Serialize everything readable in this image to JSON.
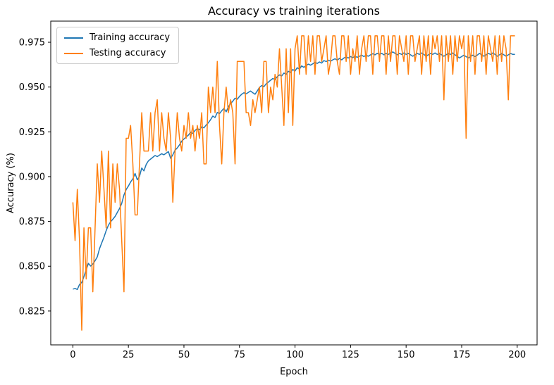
{
  "figure": {
    "background": "#ffffff"
  },
  "chart_data": {
    "type": "line",
    "title": "Accuracy vs training iterations",
    "xlabel": "Epoch",
    "ylabel": "Accuracy (%)",
    "grid": false,
    "legend_position": "upper left",
    "xlim": [
      -9.95,
      208.95
    ],
    "ylim": [
      0.8061,
      0.9868
    ],
    "xtick_labels": [
      "0",
      "25",
      "50",
      "75",
      "100",
      "125",
      "150",
      "175",
      "200"
    ],
    "ytick_labels": [
      "0.825",
      "0.850",
      "0.875",
      "0.900",
      "0.925",
      "0.950",
      "0.975"
    ],
    "x_values": "epoch index 0-199",
    "series": [
      {
        "name": "Training accuracy",
        "color": "#1f77b4",
        "values": [
          0.8372,
          0.8376,
          0.837,
          0.8398,
          0.841,
          0.8442,
          0.848,
          0.8516,
          0.8501,
          0.8512,
          0.8531,
          0.8552,
          0.8598,
          0.863,
          0.8662,
          0.8698,
          0.8729,
          0.8748,
          0.8762,
          0.8778,
          0.88,
          0.8822,
          0.8851,
          0.8898,
          0.8928,
          0.8948,
          0.897,
          0.8988,
          0.9018,
          0.8982,
          0.9001,
          0.9048,
          0.9032,
          0.9068,
          0.9088,
          0.9098,
          0.9108,
          0.9118,
          0.9112,
          0.912,
          0.9128,
          0.9122,
          0.9131,
          0.914,
          0.9102,
          0.9122,
          0.9148,
          0.916,
          0.9178,
          0.9198,
          0.921,
          0.9221,
          0.9232,
          0.9248,
          0.9241,
          0.9258,
          0.9268,
          0.9262,
          0.9278,
          0.9272,
          0.9288,
          0.9301,
          0.9318,
          0.9338,
          0.933,
          0.9358,
          0.9352,
          0.9368,
          0.938,
          0.9362,
          0.939,
          0.9408,
          0.9421,
          0.9438,
          0.9432,
          0.9448,
          0.946,
          0.9468,
          0.9462,
          0.947,
          0.9478,
          0.9468,
          0.946,
          0.9478,
          0.9498,
          0.9508,
          0.9502,
          0.9518,
          0.9528,
          0.9538,
          0.9548,
          0.9542,
          0.9558,
          0.9568,
          0.9562,
          0.9578,
          0.9572,
          0.9588,
          0.9582,
          0.9598,
          0.959,
          0.9608,
          0.96,
          0.9618,
          0.961,
          0.962,
          0.9628,
          0.9622,
          0.963,
          0.9638,
          0.9632,
          0.964,
          0.9634,
          0.9648,
          0.9642,
          0.965,
          0.9644,
          0.9652,
          0.9658,
          0.965,
          0.966,
          0.9652,
          0.9662,
          0.9668,
          0.9662,
          0.967,
          0.9664,
          0.9672,
          0.9666,
          0.9672,
          0.9678,
          0.967,
          0.9678,
          0.9672,
          0.968,
          0.9686,
          0.968,
          0.9688,
          0.9682,
          0.9688,
          0.968,
          0.9688,
          0.9682,
          0.969,
          0.9696,
          0.9688,
          0.968,
          0.9688,
          0.9682,
          0.969,
          0.9682,
          0.9688,
          0.968,
          0.9672,
          0.968,
          0.9688,
          0.9682,
          0.969,
          0.9682,
          0.9672,
          0.968,
          0.9688,
          0.9682,
          0.969,
          0.9682,
          0.9688,
          0.968,
          0.9672,
          0.968,
          0.9688,
          0.9682,
          0.969,
          0.968,
          0.9672,
          0.9662,
          0.967,
          0.9678,
          0.967,
          0.9662,
          0.967,
          0.9678,
          0.967,
          0.9678,
          0.9688,
          0.968,
          0.9672,
          0.968,
          0.9688,
          0.9682,
          0.969,
          0.9682,
          0.9672,
          0.968,
          0.9688,
          0.968,
          0.9672,
          0.968,
          0.9688,
          0.9682,
          0.9682
        ]
      },
      {
        "name": "Testing accuracy",
        "color": "#ff7f0e",
        "values": [
          0.8857,
          0.8643,
          0.8929,
          0.8643,
          0.8143,
          0.8714,
          0.8429,
          0.8714,
          0.8714,
          0.8357,
          0.8714,
          0.9071,
          0.8857,
          0.9143,
          0.8929,
          0.8714,
          0.9143,
          0.8714,
          0.9071,
          0.8857,
          0.9071,
          0.8929,
          0.8643,
          0.8357,
          0.9214,
          0.9214,
          0.9286,
          0.9071,
          0.8786,
          0.8786,
          0.9071,
          0.9357,
          0.9143,
          0.9143,
          0.9143,
          0.9357,
          0.9143,
          0.9357,
          0.9429,
          0.9143,
          0.9357,
          0.9214,
          0.9143,
          0.9357,
          0.9214,
          0.8857,
          0.9143,
          0.9357,
          0.9214,
          0.9143,
          0.9286,
          0.9214,
          0.9357,
          0.9214,
          0.9286,
          0.9143,
          0.9286,
          0.9214,
          0.9357,
          0.9071,
          0.9071,
          0.95,
          0.9357,
          0.95,
          0.9357,
          0.9643,
          0.9286,
          0.9071,
          0.9357,
          0.95,
          0.9357,
          0.9429,
          0.9357,
          0.9071,
          0.9643,
          0.9643,
          0.9643,
          0.9643,
          0.9357,
          0.9357,
          0.9286,
          0.9429,
          0.9357,
          0.9429,
          0.95,
          0.9357,
          0.9643,
          0.9643,
          0.9357,
          0.95,
          0.9429,
          0.9571,
          0.95,
          0.9714,
          0.95,
          0.9286,
          0.9714,
          0.9357,
          0.9714,
          0.9286,
          0.9714,
          0.9786,
          0.9571,
          0.9786,
          0.9786,
          0.9571,
          0.9786,
          0.9643,
          0.9786,
          0.9571,
          0.9786,
          0.9786,
          0.9643,
          0.9714,
          0.9786,
          0.9571,
          0.9643,
          0.9786,
          0.9786,
          0.9643,
          0.9571,
          0.9786,
          0.9786,
          0.9643,
          0.9786,
          0.9571,
          0.9714,
          0.9643,
          0.9786,
          0.9571,
          0.9714,
          0.9786,
          0.9643,
          0.9786,
          0.9786,
          0.9571,
          0.9786,
          0.9786,
          0.9643,
          0.9786,
          0.9786,
          0.9571,
          0.9786,
          0.9643,
          0.9786,
          0.9786,
          0.9571,
          0.9786,
          0.9714,
          0.9643,
          0.9786,
          0.9571,
          0.9786,
          0.9786,
          0.9643,
          0.9714,
          0.9786,
          0.9571,
          0.9786,
          0.9643,
          0.9786,
          0.9571,
          0.9786,
          0.9714,
          0.9786,
          0.9643,
          0.9786,
          0.9429,
          0.9786,
          0.9643,
          0.9786,
          0.9571,
          0.9786,
          0.9643,
          0.9786,
          0.9714,
          0.9786,
          0.9214,
          0.9786,
          0.9643,
          0.9786,
          0.9571,
          0.9786,
          0.9786,
          0.9643,
          0.9786,
          0.9571,
          0.9786,
          0.9714,
          0.9643,
          0.9786,
          0.9571,
          0.9786,
          0.9643,
          0.9786,
          0.9714,
          0.9429,
          0.9786,
          0.9786,
          0.9786
        ]
      }
    ]
  }
}
